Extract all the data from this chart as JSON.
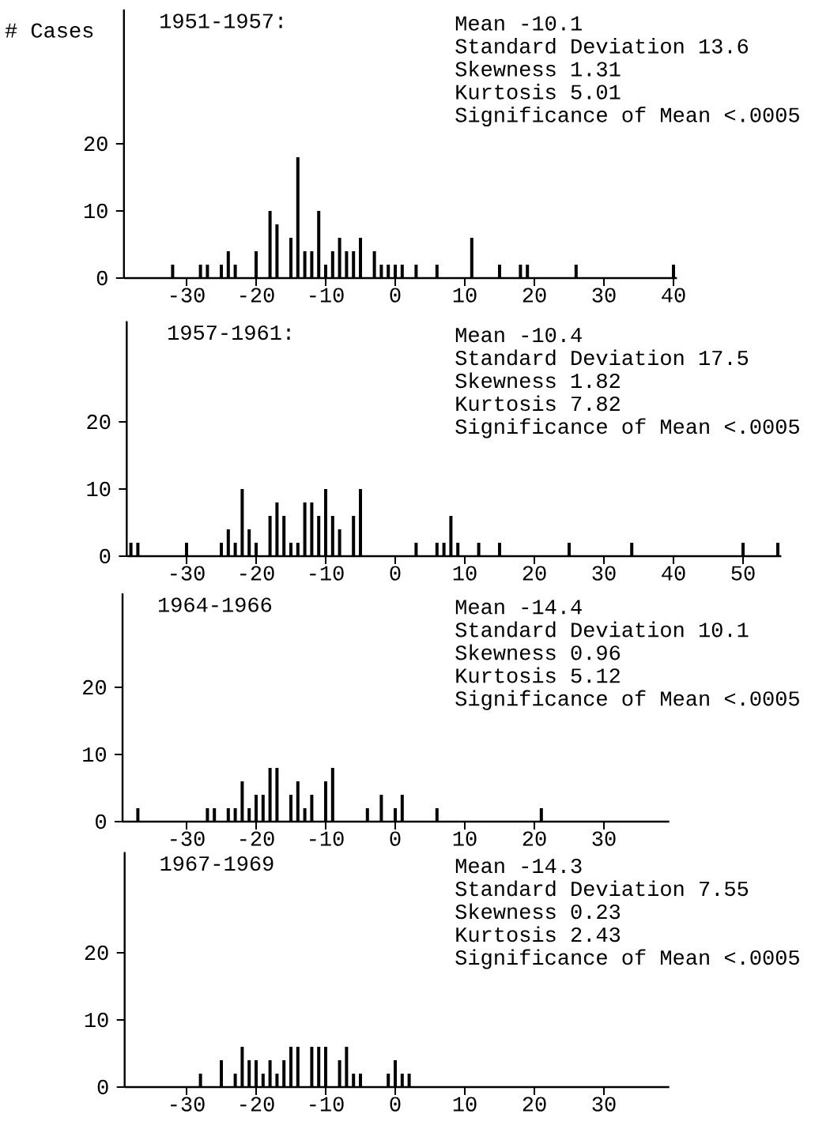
{
  "chart_data": [
    {
      "type": "bar",
      "title": "1951-1957:",
      "ylabel": "# Cases",
      "color": "#000000",
      "x": [
        -32,
        -28,
        -27,
        -25,
        -24,
        -23,
        -20,
        -18,
        -17,
        -15,
        -14,
        -13,
        -12,
        -11,
        -10,
        -9,
        -8,
        -7,
        -6,
        -5,
        -3,
        -2,
        -1,
        0,
        1,
        3,
        6,
        11,
        15,
        18,
        19,
        26,
        40
      ],
      "values": [
        2,
        2,
        2,
        2,
        4,
        2,
        4,
        10,
        8,
        6,
        18,
        4,
        4,
        10,
        2,
        4,
        6,
        4,
        4,
        6,
        4,
        2,
        2,
        2,
        2,
        2,
        2,
        6,
        2,
        2,
        2,
        2,
        2
      ],
      "xlim": [
        -39,
        40.5
      ],
      "ylim": [
        0,
        40
      ],
      "xticks": [
        -30,
        -20,
        -10,
        0,
        10,
        20,
        30,
        40
      ],
      "yticks": [
        0,
        10,
        20
      ],
      "annotations": [
        "Mean -10.1",
        "Standard Deviation 13.6",
        "Skewness 1.31",
        "Kurtosis 5.01",
        "Significance of Mean <.0005"
      ]
    },
    {
      "type": "bar",
      "title": "1957-1961:",
      "color": "#000000",
      "x": [
        -38,
        -37,
        -30,
        -25,
        -24,
        -23,
        -22,
        -21,
        -20,
        -18,
        -17,
        -16,
        -15,
        -14,
        -13,
        -12,
        -11,
        -10,
        -9,
        -8,
        -6,
        -5,
        3,
        6,
        7,
        8,
        9,
        12,
        15,
        25,
        34,
        50,
        55
      ],
      "values": [
        2,
        2,
        2,
        2,
        4,
        2,
        10,
        4,
        2,
        6,
        8,
        6,
        2,
        2,
        8,
        8,
        6,
        10,
        6,
        4,
        6,
        10,
        2,
        2,
        2,
        6,
        2,
        2,
        2,
        2,
        2,
        2,
        2
      ],
      "xlim": [
        -38.6,
        55.5
      ],
      "ylim": [
        0,
        35
      ],
      "xticks": [
        -30,
        -20,
        -10,
        0,
        10,
        20,
        30,
        40,
        50
      ],
      "yticks": [
        0,
        10,
        20
      ],
      "annotations": [
        "Mean -10.4",
        "Standard Deviation 17.5",
        "Skewness 1.82",
        "Kurtosis 7.82",
        "Significance of Mean <.0005"
      ]
    },
    {
      "type": "bar",
      "title": "1964-1966",
      "color": "#000000",
      "x": [
        -37,
        -27,
        -26,
        -24,
        -23,
        -22,
        -21,
        -20,
        -19,
        -18,
        -17,
        -15,
        -14,
        -13,
        -12,
        -10,
        -9,
        -4,
        -2,
        0,
        1,
        6,
        21
      ],
      "values": [
        2,
        2,
        2,
        2,
        2,
        6,
        2,
        4,
        4,
        8,
        8,
        4,
        6,
        2,
        4,
        6,
        8,
        2,
        4,
        2,
        4,
        2,
        2
      ],
      "xlim": [
        -39.2,
        39.4
      ],
      "ylim": [
        0,
        34
      ],
      "xticks": [
        -30,
        -20,
        -10,
        0,
        10,
        20,
        30
      ],
      "yticks": [
        0,
        10,
        20
      ],
      "annotations": [
        "Mean -14.4",
        "Standard Deviation 10.1",
        "Skewness 0.96",
        "Kurtosis 5.12",
        "Significance of Mean <.0005"
      ]
    },
    {
      "type": "bar",
      "title": "1967-1969",
      "color": "#000000",
      "x": [
        -28,
        -25,
        -23,
        -22,
        -21,
        -20,
        -19,
        -18,
        -17,
        -16,
        -15,
        -14,
        -12,
        -11,
        -10,
        -8,
        -7,
        -6,
        -5,
        -1,
        0,
        1,
        2
      ],
      "values": [
        2,
        4,
        2,
        6,
        4,
        4,
        2,
        4,
        2,
        4,
        6,
        6,
        6,
        6,
        6,
        4,
        6,
        2,
        2,
        2,
        4,
        2,
        2
      ],
      "xlim": [
        -38.9,
        39.4
      ],
      "ylim": [
        0,
        35
      ],
      "xticks": [
        -30,
        -20,
        -10,
        0,
        10,
        20,
        30
      ],
      "yticks": [
        0,
        10,
        20
      ],
      "annotations": [
        "Mean -14.3",
        "Standard Deviation 7.55",
        "Skewness 0.23",
        "Kurtosis 2.43",
        "Significance of Mean <.0005"
      ]
    }
  ]
}
